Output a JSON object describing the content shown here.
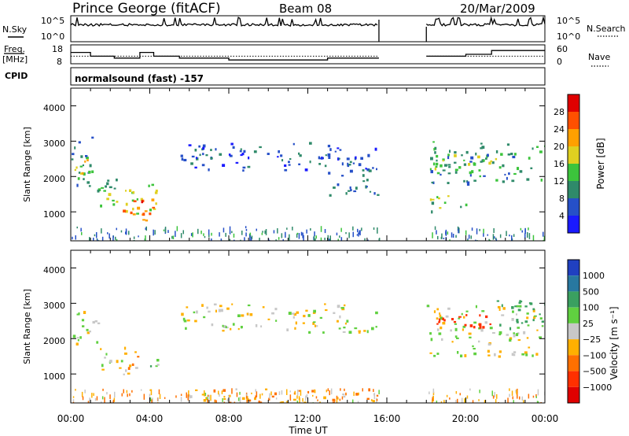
{
  "header": {
    "station": "Prince George (fitACF)",
    "beam": "Beam 08",
    "date": "20/Mar/2009"
  },
  "labels": {
    "nsky": "N.Sky",
    "nsearch": "N.Search",
    "freq_line1": "Freq.",
    "freq_line2": "[MHz]",
    "nave": "Nave",
    "cpid": "CPID",
    "cpid_value": "normalsound (fast) -157",
    "slant_range": "Slant Range [km]",
    "time_axis": "Time UT"
  },
  "ticks": {
    "noise_left": [
      "10^5",
      "10^0"
    ],
    "noise_right": [
      "10^5",
      "10^0"
    ],
    "freq_left": [
      "18",
      "8"
    ],
    "freq_right": [
      "60",
      "0"
    ],
    "time": [
      "00:00",
      "04:00",
      "08:00",
      "12:00",
      "16:00",
      "20:00",
      "00:00"
    ],
    "range": [
      "4000",
      "3000",
      "2000",
      "1000"
    ]
  },
  "chart_data": [
    {
      "type": "line",
      "panel": "noise",
      "x_range_hours": [
        0,
        24
      ],
      "gap_hours": [
        15.6,
        18.0
      ],
      "series": [
        {
          "name": "N.Sky",
          "style": "solid",
          "level": "near 10^5, noisy spikes"
        },
        {
          "name": "N.Search",
          "style": "dotted"
        }
      ]
    },
    {
      "type": "line",
      "panel": "frequency",
      "x_range_hours": [
        0,
        24
      ],
      "series": [
        {
          "name": "Freq.",
          "style": "solid",
          "points": [
            [
              0,
              14
            ],
            [
              1,
              14
            ],
            [
              1,
              12
            ],
            [
              2.2,
              12
            ],
            [
              2.2,
              11
            ],
            [
              3.5,
              11
            ],
            [
              3.5,
              14
            ],
            [
              4.2,
              14
            ],
            [
              4.2,
              12
            ],
            [
              5.5,
              12
            ],
            [
              5.5,
              11
            ],
            [
              8,
              11
            ],
            [
              8,
              10
            ],
            [
              13,
              10
            ],
            [
              13,
              11
            ],
            [
              15.6,
              11
            ],
            [
              18,
              12
            ],
            [
              20,
              12
            ],
            [
              20,
              13
            ],
            [
              21.3,
              13
            ],
            [
              21.3,
              15
            ],
            [
              24,
              15
            ]
          ]
        },
        {
          "name": "Nave",
          "style": "dotted",
          "value": 12
        }
      ]
    },
    {
      "type": "heatmap",
      "panel": "power",
      "xlabel": "Time UT",
      "ylabel": "Slant Range [km]",
      "xlim_hours": [
        0,
        24
      ],
      "ylim_km": [
        180,
        4500
      ],
      "colorbar_label": "Power [dB]",
      "colorbar_ticks": [
        4,
        8,
        12,
        16,
        20,
        24,
        28
      ],
      "colorbar_colors": [
        "#1a1aff",
        "#2650c8",
        "#2f8a6a",
        "#3cc43c",
        "#e0d020",
        "#ffa000",
        "#ff5000",
        "#e00000"
      ],
      "regions": [
        {
          "t": [
            0,
            1.2
          ],
          "r": [
            1600,
            3200
          ],
          "db": 10
        },
        {
          "t": [
            0,
            1.0
          ],
          "r": [
            2000,
            2600
          ],
          "db": 18
        },
        {
          "t": [
            1.2,
            2.5
          ],
          "r": [
            1100,
            2000
          ],
          "db": 12
        },
        {
          "t": [
            1.8,
            2.8
          ],
          "r": [
            1200,
            1600
          ],
          "db": 16
        },
        {
          "t": [
            2.5,
            3.4
          ],
          "r": [
            700,
            1800
          ],
          "db": 18
        },
        {
          "t": [
            2.6,
            3.2
          ],
          "r": [
            950,
            1400
          ],
          "db": 28
        },
        {
          "t": [
            3.4,
            4.5
          ],
          "r": [
            700,
            1800
          ],
          "db": 18
        },
        {
          "t": [
            3.5,
            4.2
          ],
          "r": [
            850,
            1500
          ],
          "db": 28
        },
        {
          "t": [
            5.5,
            15.5
          ],
          "r": [
            2200,
            3000
          ],
          "db": 6
        },
        {
          "t": [
            13,
            15.5
          ],
          "r": [
            1500,
            2400
          ],
          "db": 8
        },
        {
          "t": [
            18.0,
            24
          ],
          "r": [
            1800,
            3000
          ],
          "db": 10
        },
        {
          "t": [
            18.2,
            21.5
          ],
          "r": [
            2200,
            2700
          ],
          "db": 16
        },
        {
          "t": [
            18.0,
            20.0
          ],
          "r": [
            1000,
            1500
          ],
          "db": 14
        }
      ]
    },
    {
      "type": "heatmap",
      "panel": "velocity",
      "xlabel": "Time UT",
      "ylabel": "Slant Range [km]",
      "xlim_hours": [
        0,
        24
      ],
      "ylim_km": [
        180,
        4500
      ],
      "colorbar_label": "Velocity [m s⁻¹]",
      "colorbar_ticks": [
        1000,
        500,
        100,
        25,
        -25,
        -100,
        -500,
        -1000
      ],
      "colorbar_colors": [
        "#2040c0",
        "#2878a0",
        "#3aa060",
        "#60d040",
        "#c8c8c8",
        "#ffb000",
        "#ff7000",
        "#ff3000",
        "#e00000"
      ],
      "regions": [
        {
          "t": [
            0,
            1.5
          ],
          "r": [
            1800,
            2800
          ],
          "v": 0
        },
        {
          "t": [
            1.2,
            3.0
          ],
          "r": [
            1000,
            1800
          ],
          "v": 0
        },
        {
          "t": [
            2.8,
            3.6
          ],
          "r": [
            1100,
            1700
          ],
          "v": -100
        },
        {
          "t": [
            3.6,
            4.4
          ],
          "r": [
            1100,
            1600
          ],
          "v": 100
        },
        {
          "t": [
            5.5,
            15.5
          ],
          "r": [
            2200,
            3000
          ],
          "v": 0
        },
        {
          "t": [
            6,
            15.5
          ],
          "r": [
            200,
            600
          ],
          "v": -80
        },
        {
          "t": [
            18.0,
            24
          ],
          "r": [
            1500,
            3000
          ],
          "v": 0
        },
        {
          "t": [
            18.5,
            21.8
          ],
          "r": [
            2300,
            2800
          ],
          "v": -700
        },
        {
          "t": [
            21.5,
            24
          ],
          "r": [
            2300,
            3100
          ],
          "v": 300
        }
      ]
    }
  ]
}
